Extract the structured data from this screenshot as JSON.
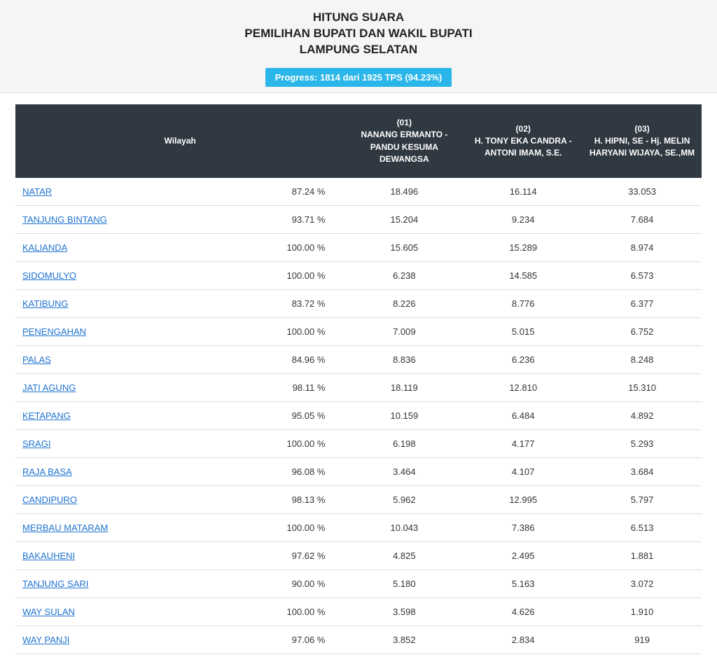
{
  "header": {
    "title_line1": "HITUNG SUARA",
    "title_line2": "PEMILIHAN BUPATI DAN WAKIL BUPATI",
    "title_line3": "LAMPUNG SELATAN",
    "progress_text": "Progress: 1814 dari 1925 TPS (94.23%)",
    "progress_bg": "#2bb6e9",
    "progress_fg": "#ffffff"
  },
  "table": {
    "type": "table",
    "header_bg": "#303841",
    "header_fg": "#ffffff",
    "row_border_color": "#dddddd",
    "link_color": "#1e73d0",
    "background_color": "#ffffff",
    "columns": [
      "Wilayah",
      "(01)\nNANANG ERMANTO - PANDU KESUMA DEWANGSA",
      "(02)\nH. TONY EKA CANDRA - ANTONI IMAM, S.E.",
      "(03)\nH. HIPNI, SE - Hj. MELIN HARYANI WIJAYA, SE.,MM"
    ],
    "column_widths_pct": [
      48,
      17.33,
      17.33,
      17.33
    ],
    "header_fontsize": 12,
    "cell_fontsize": 13,
    "rows": [
      {
        "region": "NATAR",
        "pct": "87.24 %",
        "c1": "18.496",
        "c2": "16.114",
        "c3": "33.053"
      },
      {
        "region": "TANJUNG BINTANG",
        "pct": "93.71 %",
        "c1": "15.204",
        "c2": "9.234",
        "c3": "7.684"
      },
      {
        "region": "KALIANDA",
        "pct": "100.00 %",
        "c1": "15.605",
        "c2": "15.289",
        "c3": "8.974"
      },
      {
        "region": "SIDOMULYO",
        "pct": "100.00 %",
        "c1": "6.238",
        "c2": "14.585",
        "c3": "6.573"
      },
      {
        "region": "KATIBUNG",
        "pct": "83.72 %",
        "c1": "8.226",
        "c2": "8.776",
        "c3": "6.377"
      },
      {
        "region": "PENENGAHAN",
        "pct": "100.00 %",
        "c1": "7.009",
        "c2": "5.015",
        "c3": "6.752"
      },
      {
        "region": "PALAS",
        "pct": "84.96 %",
        "c1": "8.836",
        "c2": "6.236",
        "c3": "8.248"
      },
      {
        "region": "JATI AGUNG",
        "pct": "98.11 %",
        "c1": "18.119",
        "c2": "12.810",
        "c3": "15.310"
      },
      {
        "region": "KETAPANG",
        "pct": "95.05 %",
        "c1": "10.159",
        "c2": "6.484",
        "c3": "4.892"
      },
      {
        "region": "SRAGI",
        "pct": "100.00 %",
        "c1": "6.198",
        "c2": "4.177",
        "c3": "5.293"
      },
      {
        "region": "RAJA BASA",
        "pct": "96.08 %",
        "c1": "3.464",
        "c2": "4.107",
        "c3": "3.684"
      },
      {
        "region": "CANDIPURO",
        "pct": "98.13 %",
        "c1": "5.962",
        "c2": "12.995",
        "c3": "5.797"
      },
      {
        "region": "MERBAU MATARAM",
        "pct": "100.00 %",
        "c1": "10.043",
        "c2": "7.386",
        "c3": "6.513"
      },
      {
        "region": "BAKAUHENI",
        "pct": "97.62 %",
        "c1": "4.825",
        "c2": "2.495",
        "c3": "1.881"
      },
      {
        "region": "TANJUNG SARI",
        "pct": "90.00 %",
        "c1": "5.180",
        "c2": "5.163",
        "c3": "3.072"
      },
      {
        "region": "WAY SULAN",
        "pct": "100.00 %",
        "c1": "3.598",
        "c2": "4.626",
        "c3": "1.910"
      },
      {
        "region": "WAY PANJI",
        "pct": "97.06 %",
        "c1": "3.852",
        "c2": "2.834",
        "c3": "919"
      }
    ]
  }
}
